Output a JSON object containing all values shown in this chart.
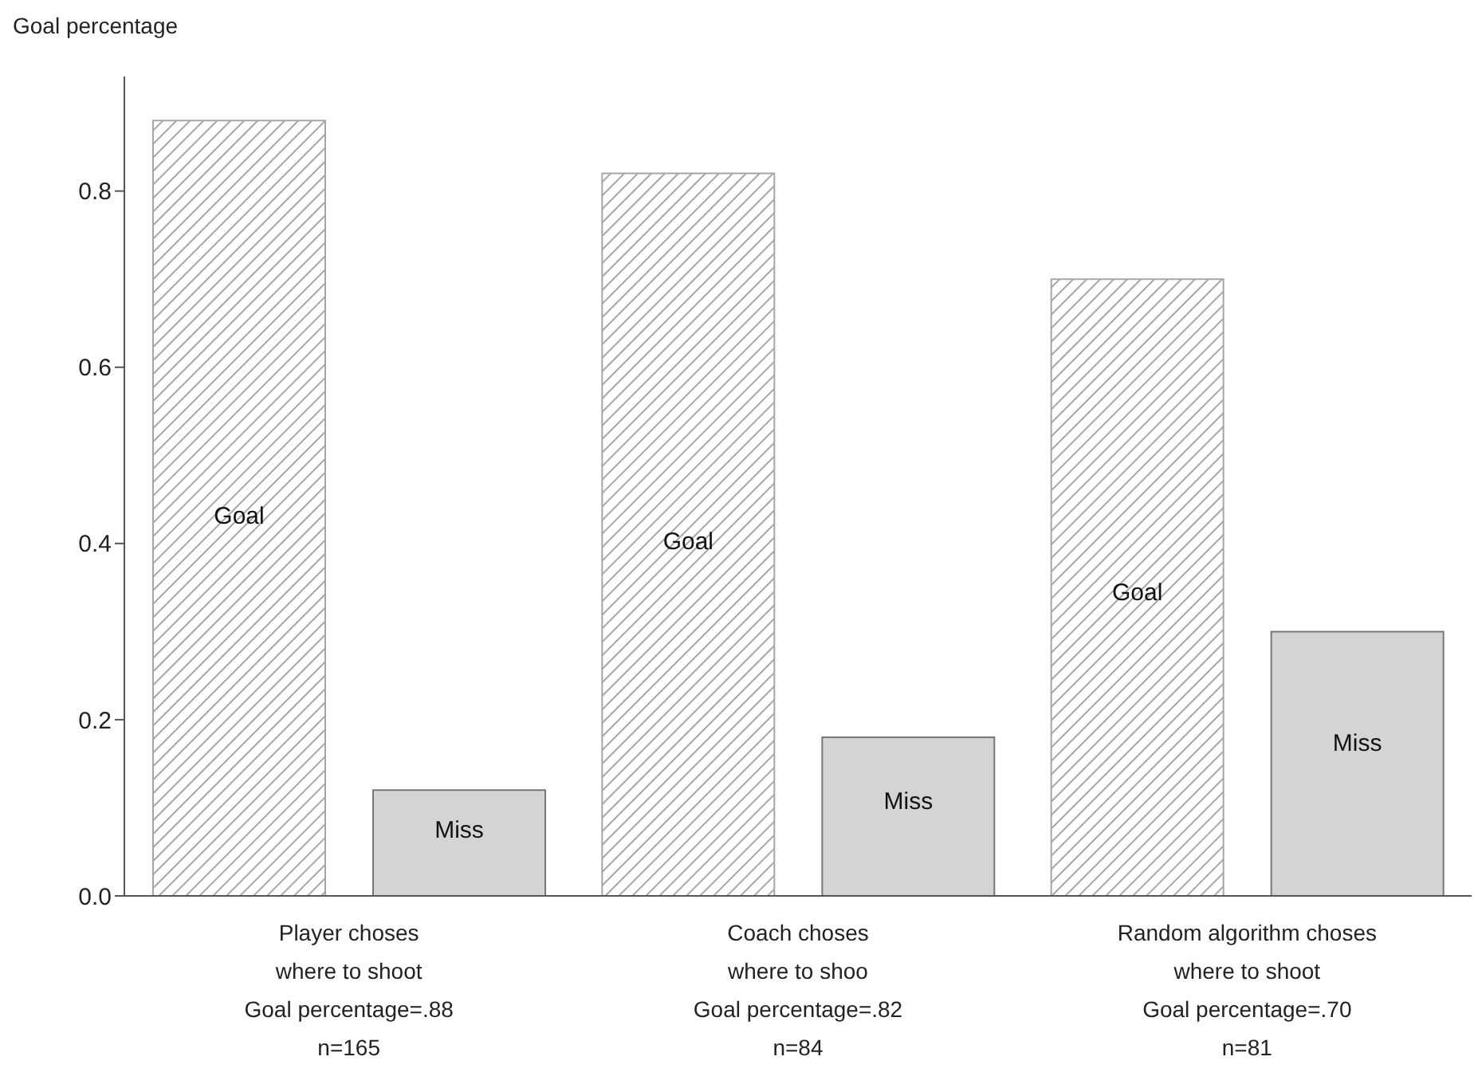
{
  "chart_data": {
    "type": "bar",
    "ylabel": "Goal percentage",
    "categories": [
      "Player choses\nwhere to shoot\nGoal percentage=.88\nn=165",
      "Coach choses\nwhere to shoo\nGoal percentage=.82\nn=84",
      "Random algorithm choses\nwhere to shoot\nGoal percentage=.70\nn=81"
    ],
    "series": [
      {
        "name": "Goal",
        "color": "#a6a6a6",
        "values": [
          0.88,
          0.82,
          0.7
        ]
      },
      {
        "name": "Miss",
        "color": "#d4d4d4",
        "values": [
          0.12,
          0.18,
          0.3
        ]
      }
    ],
    "ylim": [
      0,
      0.93
    ],
    "yticks": [
      {
        "value": 0,
        "label": "0.0"
      },
      {
        "value": 0.2,
        "label": "0.2"
      },
      {
        "value": 0.4,
        "label": "0.4"
      },
      {
        "value": 0.6,
        "label": "0.6"
      },
      {
        "value": 0.8,
        "label": "0.8"
      }
    ],
    "grid": false,
    "legend": false
  }
}
